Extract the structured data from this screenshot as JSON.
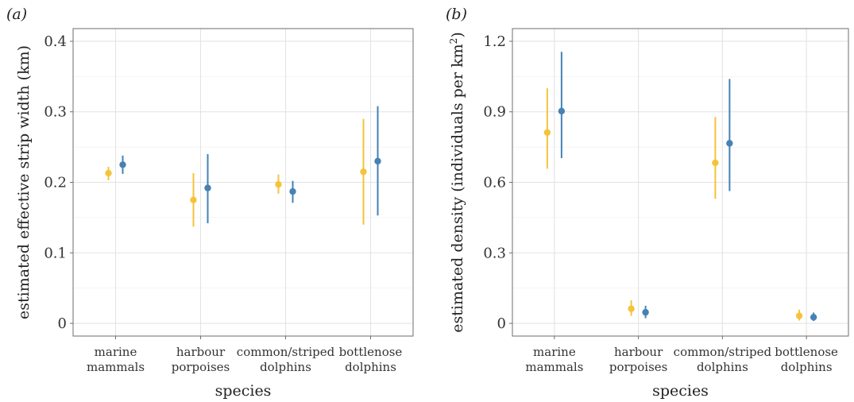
{
  "chart_data": [
    {
      "panel_label": "(a)",
      "type": "scatter",
      "ylabel": "estimated effective strip width (km)",
      "ylabel_sup": "",
      "ylabel_tail": "",
      "xlabel": "species",
      "ylim": [
        0,
        0.4
      ],
      "yticks": [
        0,
        0.1,
        0.2,
        0.3,
        0.4
      ],
      "ytick_labels": [
        "0",
        "0.1",
        "0.2",
        "0.3",
        "0.4"
      ],
      "grid": true,
      "categories": [
        [
          "marine",
          "mammals"
        ],
        [
          "harbour",
          "porpoises"
        ],
        [
          "common/striped",
          "dolphins"
        ],
        [
          "bottlenose",
          "dolphins"
        ]
      ],
      "series": [
        {
          "color": "#F5C33B",
          "values": [
            0.213,
            0.175,
            0.197,
            0.215
          ],
          "lower": [
            0.203,
            0.137,
            0.184,
            0.14
          ],
          "upper": [
            0.222,
            0.213,
            0.211,
            0.29
          ]
        },
        {
          "color": "#4682B4",
          "values": [
            0.225,
            0.192,
            0.187,
            0.23
          ],
          "lower": [
            0.212,
            0.142,
            0.171,
            0.153
          ],
          "upper": [
            0.238,
            0.24,
            0.202,
            0.308
          ]
        }
      ]
    },
    {
      "panel_label": "(b)",
      "type": "scatter",
      "ylabel": "estimated density (individuals per km",
      "ylabel_sup": "2",
      "ylabel_tail": ")",
      "xlabel": "species",
      "ylim": [
        0,
        1.2
      ],
      "yticks": [
        0,
        0.3,
        0.6,
        0.9,
        1.2
      ],
      "ytick_labels": [
        "0",
        "0.3",
        "0.6",
        "0.9",
        "1.2"
      ],
      "grid": true,
      "categories": [
        [
          "marine",
          "mammals"
        ],
        [
          "harbour",
          "porpoises"
        ],
        [
          "common/striped",
          "dolphins"
        ],
        [
          "bottlenose",
          "dolphins"
        ]
      ],
      "series": [
        {
          "color": "#F5C33B",
          "values": [
            0.812,
            0.062,
            0.683,
            0.032
          ],
          "lower": [
            0.658,
            0.032,
            0.53,
            0.012
          ],
          "upper": [
            1.0,
            0.098,
            0.878,
            0.058
          ]
        },
        {
          "color": "#4682B4",
          "values": [
            0.903,
            0.047,
            0.766,
            0.026
          ],
          "lower": [
            0.703,
            0.022,
            0.563,
            0.01
          ],
          "upper": [
            1.155,
            0.075,
            1.04,
            0.046
          ]
        }
      ]
    }
  ]
}
